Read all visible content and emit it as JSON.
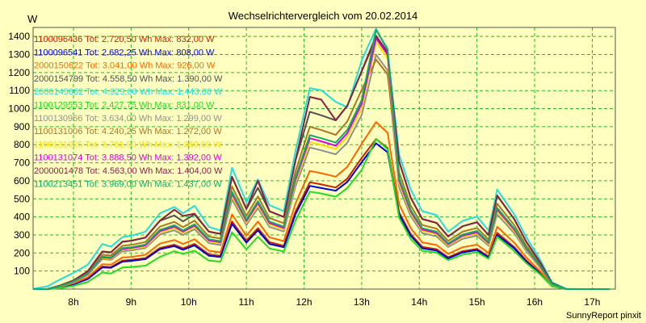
{
  "chart_data": {
    "type": "line",
    "title": "Wechselrichtervergleich vom 20.02.2014",
    "ylabel": "W",
    "xlabel": "",
    "footer": "SunnyReport pinxit",
    "ylim": [
      0,
      1450
    ],
    "xlim": [
      7.3,
      17.4
    ],
    "yticks": [
      100,
      200,
      300,
      400,
      500,
      600,
      700,
      800,
      900,
      1000,
      1100,
      1200,
      1300,
      1400
    ],
    "xticks": [
      8,
      9,
      10,
      11,
      12,
      13,
      14,
      15,
      16,
      17
    ],
    "xtick_labels": [
      "8h",
      "9h",
      "10h",
      "11h",
      "12h",
      "13h",
      "14h",
      "15h",
      "16h",
      "17h"
    ],
    "grid": true,
    "legend_position": "top-left",
    "x": [
      7.3,
      7.55,
      7.75,
      8.0,
      8.25,
      8.5,
      8.65,
      8.85,
      9.0,
      9.25,
      9.5,
      9.75,
      9.9,
      10.1,
      10.35,
      10.55,
      10.75,
      11.0,
      11.2,
      11.4,
      11.65,
      11.85,
      12.1,
      12.3,
      12.55,
      12.75,
      13.0,
      13.25,
      13.45,
      13.65,
      13.85,
      14.05,
      14.3,
      14.5,
      14.75,
      15.0,
      15.2,
      15.35,
      15.65,
      15.85,
      16.1,
      16.3,
      16.55,
      16.8,
      17.05,
      17.3
    ],
    "series": [
      {
        "name": "1100096436",
        "label": "1100096436 Tot: 2.720,50 Wh Max: 832,00 W",
        "color": "#cc2200",
        "values": [
          0,
          0,
          10,
          28,
          58,
          125,
          122,
          158,
          162,
          172,
          228,
          246,
          226,
          250,
          192,
          185,
          375,
          268,
          338,
          260,
          240,
          428,
          592,
          580,
          563,
          612,
          727,
          832,
          782,
          425,
          305,
          234,
          221,
          176,
          210,
          223,
          181,
          312,
          232,
          160,
          88,
          20,
          0,
          0,
          0,
          0
        ]
      },
      {
        "name": "1100096541",
        "label": "1100096541 Tot: 2.682,25 Wh Max: 808,00 W",
        "color": "#0000dd",
        "values": [
          0,
          0,
          8,
          27,
          56,
          120,
          118,
          152,
          156,
          166,
          221,
          238,
          218,
          242,
          185,
          178,
          362,
          258,
          326,
          250,
          232,
          414,
          572,
          560,
          545,
          594,
          703,
          808,
          758,
          412,
          296,
          226,
          213,
          170,
          203,
          216,
          175,
          300,
          224,
          154,
          85,
          18,
          0,
          0,
          0,
          0
        ]
      },
      {
        "name": "2000150622",
        "label": "2000150622 Tot: 3.041,00 Wh Max: 926,00 W",
        "color": "#ff6600",
        "values": [
          0,
          0,
          12,
          32,
          66,
          138,
          135,
          175,
          178,
          190,
          252,
          272,
          250,
          276,
          212,
          204,
          414,
          296,
          374,
          287,
          266,
          473,
          655,
          642,
          623,
          677,
          805,
          926,
          866,
          470,
          338,
          259,
          244,
          195,
          232,
          246,
          200,
          345,
          256,
          177,
          98,
          22,
          0,
          0,
          0,
          0
        ]
      },
      {
        "name": "2000154799",
        "label": "2000154799 Tot: 4.558,50 Wh Max: 1.390,00 W",
        "color": "#505050",
        "values": [
          0,
          0,
          18,
          48,
          99,
          208,
          203,
          262,
          268,
          285,
          378,
          408,
          375,
          414,
          318,
          306,
          622,
          444,
          561,
          431,
          399,
          710,
          983,
          963,
          935,
          1016,
          1207,
          1390,
          1300,
          706,
          506,
          388,
          366,
          292,
          348,
          370,
          300,
          518,
          385,
          265,
          146,
          33,
          0,
          0,
          0,
          0
        ]
      },
      {
        "name": "2000149882",
        "label": "2000149882 Tot: 4.929,00 Wh Max: 1.443,00 W",
        "color": "#22dddd",
        "values": [
          2,
          15,
          50,
          90,
          135,
          250,
          235,
          288,
          295,
          318,
          420,
          455,
          420,
          462,
          345,
          325,
          672,
          482,
          608,
          465,
          432,
          762,
          1114,
          1102,
          1038,
          1008,
          1268,
          1443,
          1320,
          745,
          552,
          432,
          410,
          318,
          378,
          402,
          325,
          552,
          412,
          290,
          160,
          38,
          2,
          0,
          0,
          0
        ]
      },
      {
        "name": "1100129553",
        "label": "1100129553 Tot: 2.427,75 Wh Max: 831,00 W",
        "color": "#22dd22",
        "values": [
          0,
          0,
          4,
          18,
          40,
          92,
          86,
          120,
          122,
          130,
          178,
          210,
          195,
          212,
          158,
          152,
          315,
          220,
          290,
          225,
          208,
          378,
          540,
          530,
          512,
          560,
          660,
          831,
          775,
          395,
          278,
          212,
          202,
          160,
          190,
          205,
          168,
          290,
          210,
          145,
          80,
          15,
          0,
          0,
          0,
          0
        ]
      },
      {
        "name": "1100130966",
        "label": "1100130966 Tot: 3.634,00 Wh Max: 1.299,00 W",
        "color": "#909090",
        "values": [
          0,
          0,
          14,
          38,
          79,
          166,
          162,
          209,
          214,
          228,
          302,
          326,
          300,
          331,
          254,
          244,
          497,
          355,
          448,
          344,
          319,
          567,
          785,
          769,
          747,
          811,
          964,
          1299,
          1212,
          564,
          404,
          310,
          292,
          233,
          278,
          296,
          240,
          414,
          308,
          212,
          117,
          26,
          0,
          0,
          0,
          0
        ]
      },
      {
        "name": "1100131006",
        "label": "1100131006 Tot: 4.240,25 Wh Max: 1.272,00 W",
        "color": "#aa7722",
        "values": [
          0,
          0,
          16,
          44,
          91,
          190,
          186,
          240,
          245,
          261,
          346,
          373,
          343,
          379,
          291,
          280,
          569,
          406,
          513,
          394,
          365,
          650,
          900,
          881,
          855,
          929,
          1104,
          1272,
          1190,
          646,
          463,
          355,
          335,
          267,
          318,
          339,
          275,
          474,
          352,
          243,
          134,
          30,
          0,
          0,
          0,
          0
        ]
      },
      {
        "name": "1100131025",
        "label": "1100131025 Tot: 3.781,50 Wh Max: 1.369,00 W",
        "color": "#ffdd00",
        "values": [
          0,
          0,
          14,
          40,
          82,
          172,
          168,
          217,
          222,
          236,
          313,
          338,
          311,
          343,
          264,
          254,
          516,
          368,
          465,
          357,
          331,
          589,
          815,
          799,
          776,
          843,
          1001,
          1369,
          1280,
          586,
          420,
          322,
          304,
          242,
          289,
          307,
          249,
          430,
          320,
          220,
          121,
          27,
          0,
          0,
          0,
          0
        ]
      },
      {
        "name": "1100131074",
        "label": "1100131074 Tot: 3.888,50 Wh Max: 1.392,00 W",
        "color": "#dd00dd",
        "values": [
          0,
          0,
          15,
          41,
          84,
          176,
          172,
          222,
          228,
          242,
          321,
          346,
          319,
          352,
          270,
          260,
          529,
          377,
          477,
          366,
          339,
          604,
          836,
          819,
          795,
          864,
          1026,
          1392,
          1300,
          601,
          430,
          330,
          311,
          248,
          296,
          315,
          255,
          441,
          328,
          226,
          124,
          28,
          0,
          0,
          0,
          0
        ]
      },
      {
        "name": "2000001478",
        "label": "2000001478 Tot: 4.563,00 Wh Max: 1.404,00 W",
        "color": "#882244",
        "values": [
          0,
          0,
          18,
          48,
          99,
          208,
          204,
          263,
          268,
          286,
          379,
          440,
          405,
          418,
          318,
          306,
          623,
          445,
          600,
          432,
          400,
          711,
          1065,
          1050,
          936,
          1017,
          1208,
          1404,
          1312,
          707,
          507,
          389,
          367,
          292,
          348,
          371,
          300,
          519,
          386,
          265,
          146,
          33,
          0,
          0,
          0,
          0
        ]
      },
      {
        "name": "1100213451",
        "label": "1100213451 Tot: 3.969,00 Wh Max: 1.437,00 W",
        "color": "#11aa66",
        "values": [
          0,
          0,
          15,
          42,
          86,
          180,
          176,
          227,
          232,
          247,
          328,
          354,
          325,
          359,
          276,
          266,
          540,
          385,
          487,
          374,
          346,
          617,
          853,
          836,
          812,
          882,
          1047,
          1437,
          1330,
          613,
          439,
          337,
          318,
          253,
          302,
          322,
          261,
          450,
          334,
          230,
          127,
          29,
          0,
          0,
          0,
          0
        ]
      }
    ]
  }
}
